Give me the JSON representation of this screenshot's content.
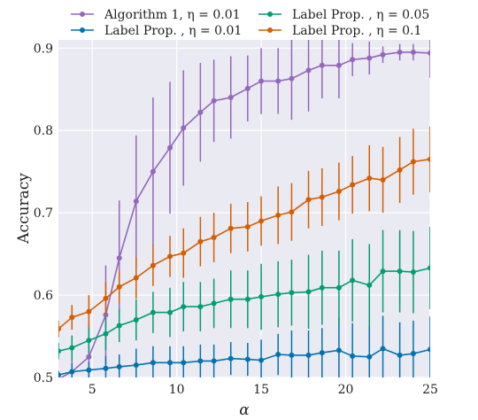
{
  "chart_data": {
    "type": "line",
    "xlabel": "α",
    "ylabel": "Accuracy",
    "xlim": [
      3,
      25
    ],
    "ylim": [
      0.5,
      0.91
    ],
    "xticks": [
      5,
      10,
      15,
      20,
      25
    ],
    "yticks": [
      0.5,
      0.6,
      0.7,
      0.8,
      0.9
    ],
    "xtick_labels": [
      "5",
      "10",
      "15",
      "20",
      "25"
    ],
    "ytick_labels": [
      "0.5",
      "0.6",
      "0.7",
      "0.8",
      "0.9"
    ],
    "grid": true,
    "background": "#eaeaf2",
    "legend": {
      "placement": "top (outside plot, two columns)",
      "entries": [
        {
          "label": "Algorithm 1, η = 0.01",
          "color": "#9467bd"
        },
        {
          "label": "Label Prop. , η = 0.05",
          "color": "#009e73"
        },
        {
          "label": "Label Prop. , η = 0.01",
          "color": "#0072b2"
        },
        {
          "label": "Label Prop. , η = 0.1",
          "color": "#d55e00"
        }
      ]
    },
    "x": [
      3,
      4,
      5,
      6,
      7,
      8,
      9,
      10,
      11,
      12,
      13,
      14,
      15,
      16,
      17,
      18,
      19,
      20,
      21,
      22,
      23,
      24,
      25
    ],
    "series": [
      {
        "name": "Algorithm 1, η = 0.01",
        "color": "#9467bd",
        "values": [
          0.498,
          0.507,
          0.525,
          0.576,
          0.645,
          0.714,
          0.75,
          0.779,
          0.803,
          0.822,
          0.836,
          0.84,
          0.851,
          0.86,
          0.86,
          0.863,
          0.873,
          0.879,
          0.879,
          0.886,
          0.888,
          0.892,
          0.895,
          0.895,
          0.894
        ],
        "x": [
          3,
          3.8,
          4.8,
          5.8,
          6.6,
          7.6,
          8.6,
          9.6,
          10.4,
          11.4,
          12.2,
          13.2,
          14.2,
          15.0,
          16.0,
          16.8,
          17.8,
          18.6,
          19.6,
          20.4,
          21.4,
          22.2,
          23.2,
          24.0,
          25.0
        ],
        "err": [
          0.01,
          0.02,
          0.04,
          0.06,
          0.07,
          0.08,
          0.09,
          0.08,
          0.07,
          0.06,
          0.05,
          0.05,
          0.04,
          0.04,
          0.04,
          0.05,
          0.05,
          0.04,
          0.04,
          0.02,
          0.02,
          0.01,
          0.01,
          0.01,
          0.03
        ]
      },
      {
        "name": "Label Prop. , η = 0.01",
        "color": "#0072b2",
        "values": [
          0.503,
          0.507,
          0.509,
          0.511,
          0.513,
          0.515,
          0.518,
          0.518,
          0.518,
          0.52,
          0.52,
          0.523,
          0.522,
          0.521,
          0.528,
          0.527,
          0.527,
          0.53,
          0.533,
          0.526,
          0.525,
          0.535,
          0.527,
          0.529,
          0.534
        ],
        "x": [
          3,
          3.8,
          4.8,
          5.8,
          6.6,
          7.6,
          8.6,
          9.6,
          10.4,
          11.4,
          12.2,
          13.2,
          14.2,
          15.0,
          16.0,
          16.8,
          17.8,
          18.6,
          19.6,
          20.4,
          21.4,
          22.2,
          23.2,
          24.0,
          25.0
        ],
        "err": [
          0.005,
          0.01,
          0.01,
          0.015,
          0.015,
          0.02,
          0.02,
          0.02,
          0.02,
          0.02,
          0.02,
          0.02,
          0.02,
          0.025,
          0.025,
          0.03,
          0.03,
          0.03,
          0.04,
          0.04,
          0.04,
          0.04,
          0.04,
          0.04,
          0.04
        ]
      },
      {
        "name": "Label Prop. , η = 0.05",
        "color": "#009e73",
        "values": [
          0.532,
          0.536,
          0.545,
          0.553,
          0.563,
          0.57,
          0.579,
          0.579,
          0.586,
          0.586,
          0.59,
          0.595,
          0.595,
          0.598,
          0.601,
          0.603,
          0.604,
          0.609,
          0.609,
          0.618,
          0.612,
          0.629,
          0.629,
          0.628,
          0.633
        ],
        "x": [
          3,
          3.8,
          4.8,
          5.8,
          6.6,
          7.6,
          8.6,
          9.6,
          10.4,
          11.4,
          12.2,
          13.2,
          14.2,
          15.0,
          16.0,
          16.8,
          17.8,
          18.6,
          19.6,
          20.4,
          21.4,
          22.2,
          23.2,
          24.0,
          25.0
        ],
        "err": [
          0.01,
          0.015,
          0.015,
          0.02,
          0.02,
          0.025,
          0.025,
          0.03,
          0.03,
          0.03,
          0.03,
          0.035,
          0.035,
          0.04,
          0.04,
          0.04,
          0.045,
          0.045,
          0.045,
          0.05,
          0.05,
          0.05,
          0.05,
          0.05,
          0.05
        ]
      },
      {
        "name": "Label Prop. , η = 0.1",
        "color": "#d55e00",
        "values": [
          0.559,
          0.573,
          0.58,
          0.596,
          0.61,
          0.621,
          0.636,
          0.647,
          0.651,
          0.665,
          0.67,
          0.681,
          0.683,
          0.69,
          0.697,
          0.701,
          0.716,
          0.719,
          0.726,
          0.734,
          0.742,
          0.74,
          0.752,
          0.762,
          0.765
        ],
        "x": [
          3,
          3.8,
          4.8,
          5.8,
          6.6,
          7.6,
          8.6,
          9.6,
          10.4,
          11.4,
          12.2,
          13.2,
          14.2,
          15.0,
          16.0,
          16.8,
          17.8,
          18.6,
          19.6,
          20.4,
          21.4,
          22.2,
          23.2,
          24.0,
          25.0
        ],
        "err": [
          0.01,
          0.015,
          0.02,
          0.02,
          0.02,
          0.025,
          0.025,
          0.025,
          0.03,
          0.03,
          0.03,
          0.03,
          0.03,
          0.03,
          0.035,
          0.035,
          0.035,
          0.035,
          0.035,
          0.035,
          0.04,
          0.04,
          0.04,
          0.04,
          0.04
        ]
      }
    ]
  }
}
